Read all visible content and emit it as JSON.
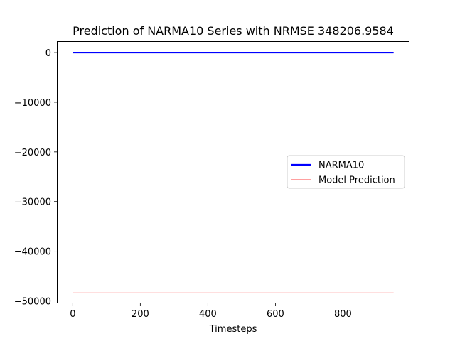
{
  "chart_data": {
    "type": "line",
    "title": "Prediction of NARMA10 Series with NRMSE 348206.9584",
    "xlabel": "Timesteps",
    "ylabel": "",
    "xlim": [
      -47,
      997
    ],
    "ylim": [
      -50500,
      2300
    ],
    "xticks": [
      0,
      200,
      400,
      600,
      800
    ],
    "xtick_labels": [
      "0",
      "200",
      "400",
      "600",
      "800"
    ],
    "yticks": [
      0,
      -10000,
      -20000,
      -30000,
      -40000,
      -50000
    ],
    "ytick_labels": [
      "0",
      "−10000",
      "−20000",
      "−30000",
      "−40000",
      "−50000"
    ],
    "grid": false,
    "legend_position": "center-right",
    "series": [
      {
        "name": "NARMA10",
        "color": "#0000ff",
        "line_width": "thick",
        "x": [
          0,
          950
        ],
        "y": [
          0,
          0
        ]
      },
      {
        "name": "Model Prediction",
        "color": "#ff0000",
        "line_width": "thin",
        "x": [
          0,
          950
        ],
        "y": [
          -48400,
          -48400
        ]
      }
    ]
  }
}
